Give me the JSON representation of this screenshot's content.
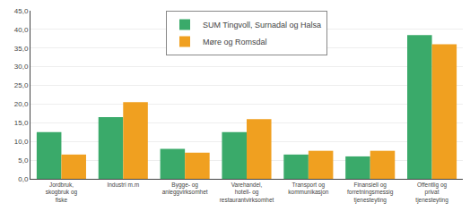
{
  "chart_data": {
    "type": "bar",
    "categories": [
      "Jordbruk, skogbruk og\nfiske",
      "Industri m.m",
      "Bygge- og\nanleggvirksomhet",
      "Varehandel, hotell- og\nrestaurantvirksomhet",
      "Transport og\nkommunikasjon",
      "Finansiell og forretningsmessig\ntjenesteyting",
      "Offentlig og privat\ntjenesteyting"
    ],
    "series": [
      {
        "name": "SUM Tingvoll, Surnadal og Halsa",
        "color": "#3aaa6a",
        "values": [
          12.5,
          16.5,
          8.0,
          12.5,
          6.5,
          6.0,
          38.5
        ]
      },
      {
        "name": "Møre og Romsdal",
        "color": "#f0a020",
        "values": [
          6.5,
          20.5,
          7.0,
          16.0,
          7.5,
          7.5,
          36.0
        ]
      }
    ],
    "ylim": [
      0,
      45
    ],
    "yticks": [
      {
        "value": 0,
        "label": "0,0"
      },
      {
        "value": 5,
        "label": "5,0"
      },
      {
        "value": 10,
        "label": "10,0"
      },
      {
        "value": 15,
        "label": "15,0"
      },
      {
        "value": 20,
        "label": "20,0"
      },
      {
        "value": 25,
        "label": "25,0"
      },
      {
        "value": 30,
        "label": "30,0"
      },
      {
        "value": 35,
        "label": "35,0"
      },
      {
        "value": 40,
        "label": "40,0"
      },
      {
        "value": 45,
        "label": "45,0"
      }
    ],
    "grid": true,
    "legend": "top"
  }
}
